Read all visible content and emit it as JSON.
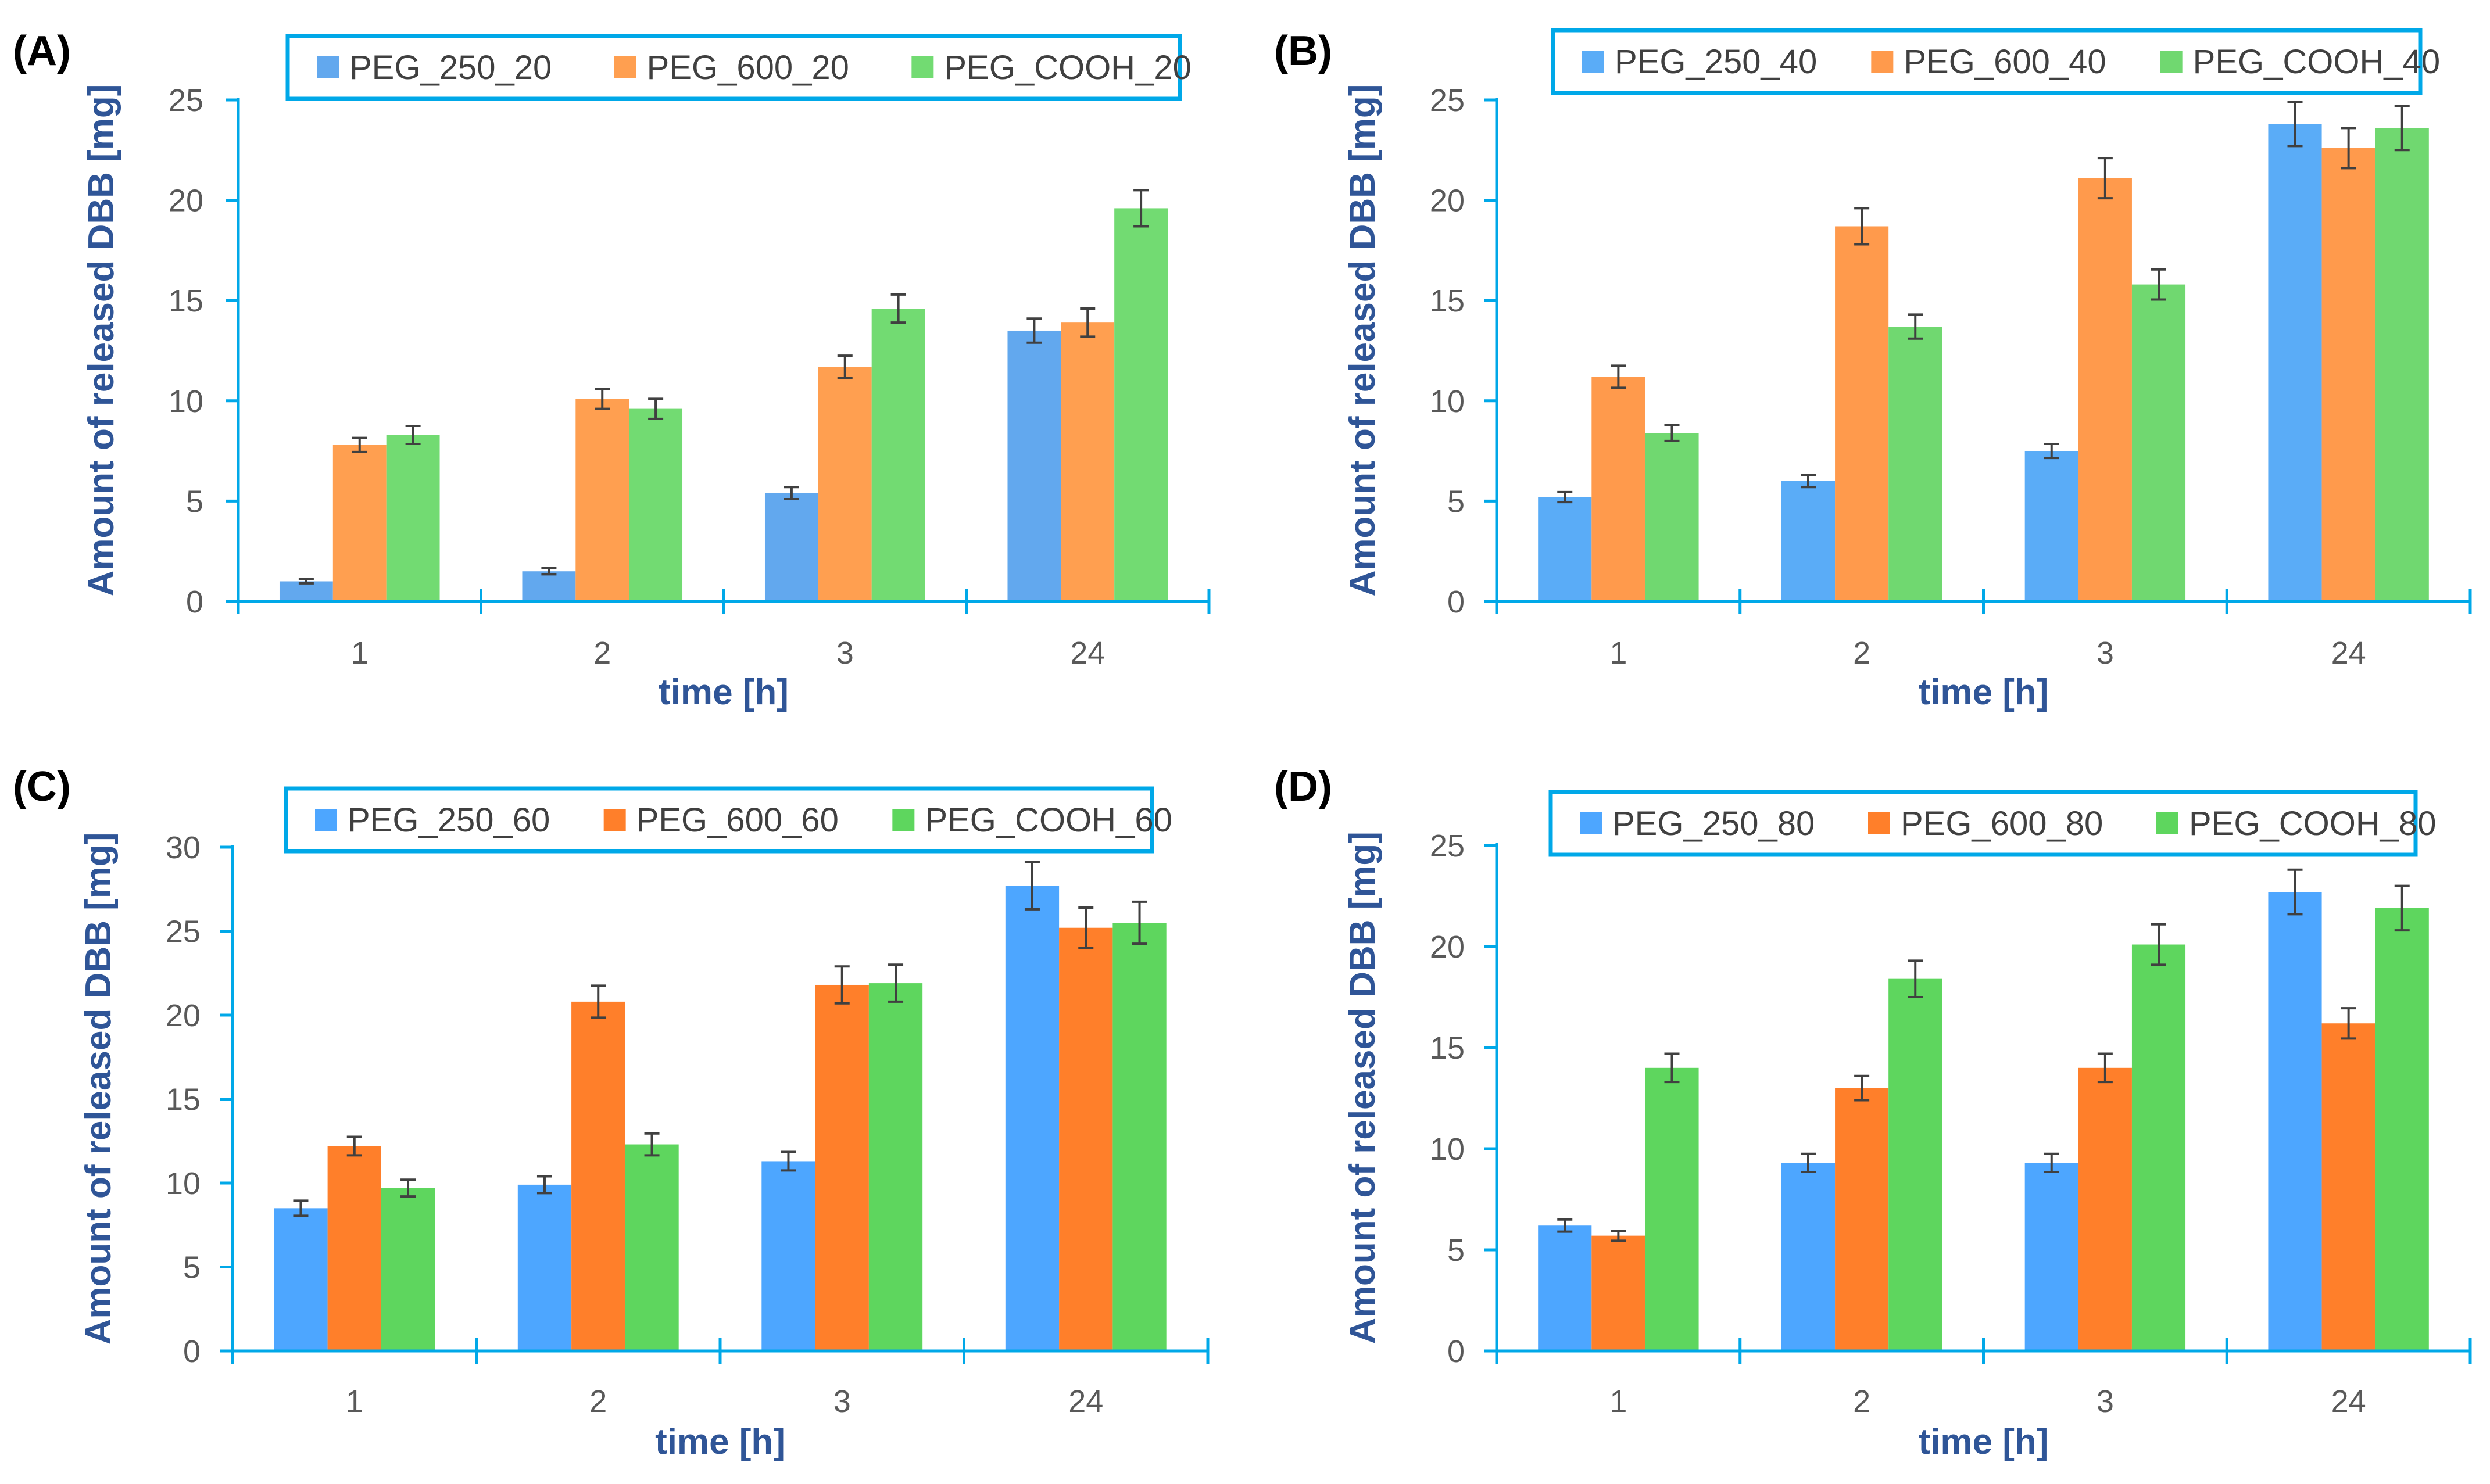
{
  "colors": {
    "axis": "#00A8E8",
    "legend_border": "#00A8E8",
    "error_bar": "#404040"
  },
  "chart_data": [
    {
      "panel": "(A)",
      "type": "bar",
      "categories": [
        "1",
        "2",
        "3",
        "24"
      ],
      "xlabel": "time [h]",
      "ylabel": "Amount of released DBB [mg]",
      "ylim": [
        0,
        25
      ],
      "yticks": [
        0,
        5,
        10,
        15,
        20,
        25
      ],
      "legend_position": "top-center",
      "series": [
        {
          "name": "PEG_250_20",
          "color": "#62A8EE",
          "values": [
            1.0,
            1.5,
            5.4,
            13.5
          ],
          "errors": [
            0.1,
            0.15,
            0.3,
            0.6
          ]
        },
        {
          "name": "PEG_600_20",
          "color": "#FF9F50",
          "values": [
            7.8,
            10.1,
            11.7,
            13.9
          ],
          "errors": [
            0.35,
            0.5,
            0.55,
            0.7
          ]
        },
        {
          "name": "PEG_COOH_20",
          "color": "#72DB72",
          "values": [
            8.3,
            9.6,
            14.6,
            19.6
          ],
          "errors": [
            0.45,
            0.5,
            0.7,
            0.9
          ]
        }
      ]
    },
    {
      "panel": "(B)",
      "type": "bar",
      "categories": [
        "1",
        "2",
        "3",
        "24"
      ],
      "xlabel": "time [h]",
      "ylabel": "Amount of released DBB [mg]",
      "ylim": [
        0,
        25
      ],
      "yticks": [
        0,
        5,
        10,
        15,
        20,
        25
      ],
      "legend_position": "top-center",
      "series": [
        {
          "name": "PEG_250_40",
          "color": "#5AACF7",
          "values": [
            5.2,
            6.0,
            7.5,
            23.8
          ],
          "errors": [
            0.25,
            0.3,
            0.35,
            1.1
          ]
        },
        {
          "name": "PEG_600_40",
          "color": "#FF9A4C",
          "values": [
            11.2,
            18.7,
            21.1,
            22.6
          ],
          "errors": [
            0.55,
            0.9,
            1.0,
            1.0
          ]
        },
        {
          "name": "PEG_COOH_40",
          "color": "#70D870",
          "values": [
            8.4,
            13.7,
            15.8,
            23.6
          ],
          "errors": [
            0.4,
            0.6,
            0.75,
            1.1
          ]
        }
      ]
    },
    {
      "panel": "(C)",
      "type": "bar",
      "categories": [
        "1",
        "2",
        "3",
        "24"
      ],
      "xlabel": "time [h]",
      "ylabel": "Amount of released DBB [mg]",
      "ylim": [
        0,
        30
      ],
      "yticks": [
        0,
        5,
        10,
        15,
        20,
        25,
        30
      ],
      "legend_position": "top-center",
      "series": [
        {
          "name": "PEG_250_60",
          "color": "#4DA6FF",
          "values": [
            8.5,
            9.9,
            11.3,
            27.7
          ],
          "errors": [
            0.45,
            0.5,
            0.55,
            1.4
          ]
        },
        {
          "name": "PEG_600_60",
          "color": "#FF7F2A",
          "values": [
            12.2,
            20.8,
            21.8,
            25.2
          ],
          "errors": [
            0.55,
            0.95,
            1.1,
            1.2
          ]
        },
        {
          "name": "PEG_COOH_60",
          "color": "#5ED65E",
          "values": [
            9.7,
            12.3,
            21.9,
            25.5
          ],
          "errors": [
            0.5,
            0.65,
            1.1,
            1.25
          ]
        }
      ]
    },
    {
      "panel": "(D)",
      "type": "bar",
      "categories": [
        "1",
        "2",
        "3",
        "24"
      ],
      "xlabel": "time [h]",
      "ylabel": "Amount of released DBB [mg]",
      "ylim": [
        0,
        25
      ],
      "yticks": [
        0,
        5,
        10,
        15,
        20,
        25
      ],
      "legend_position": "top-center",
      "series": [
        {
          "name": "PEG_250_80",
          "color": "#4DA6FF",
          "values": [
            6.2,
            9.3,
            9.3,
            22.7
          ],
          "errors": [
            0.3,
            0.45,
            0.45,
            1.1
          ]
        },
        {
          "name": "PEG_600_80",
          "color": "#FF7F2A",
          "values": [
            5.7,
            13.0,
            14.0,
            16.2
          ],
          "errors": [
            0.25,
            0.6,
            0.7,
            0.75
          ]
        },
        {
          "name": "PEG_COOH_80",
          "color": "#5ED65E",
          "values": [
            14.0,
            18.4,
            20.1,
            21.9
          ],
          "errors": [
            0.7,
            0.9,
            1.0,
            1.1
          ]
        }
      ]
    }
  ]
}
